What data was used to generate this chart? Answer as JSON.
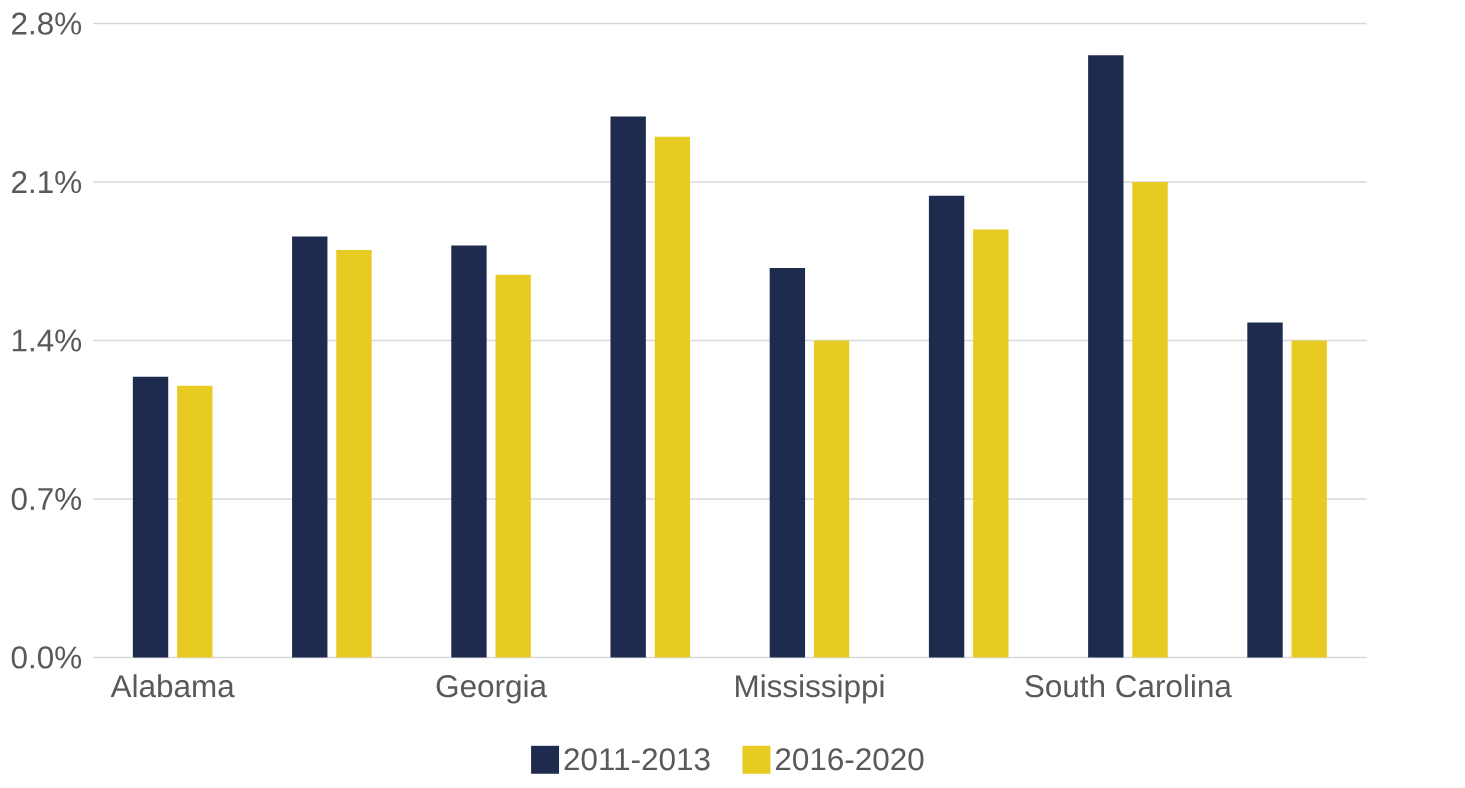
{
  "chart_data": {
    "type": "bar",
    "categories": [
      "Alabama",
      null,
      "Georgia",
      null,
      "Mississippi",
      null,
      "South Carolina",
      null
    ],
    "series": [
      {
        "name": "2011-2013",
        "color": "#1f2a4f",
        "values": [
          1.24,
          1.86,
          1.82,
          2.39,
          1.72,
          2.04,
          2.66,
          1.48
        ]
      },
      {
        "name": "2016-2020",
        "color": "#e8cb22",
        "values": [
          1.2,
          1.8,
          1.69,
          2.3,
          1.4,
          1.89,
          2.1,
          1.4
        ]
      }
    ],
    "ylim": [
      0,
      2.8
    ],
    "yticks": [
      {
        "value": 0,
        "label": "0.0%"
      },
      {
        "value": 0.7,
        "label": "0.7%"
      },
      {
        "value": 1.4,
        "label": "1.4%"
      },
      {
        "value": 2.1,
        "label": "2.1%"
      },
      {
        "value": 2.8,
        "label": "2.8%"
      }
    ],
    "grid": "y",
    "legend": "bottom"
  }
}
